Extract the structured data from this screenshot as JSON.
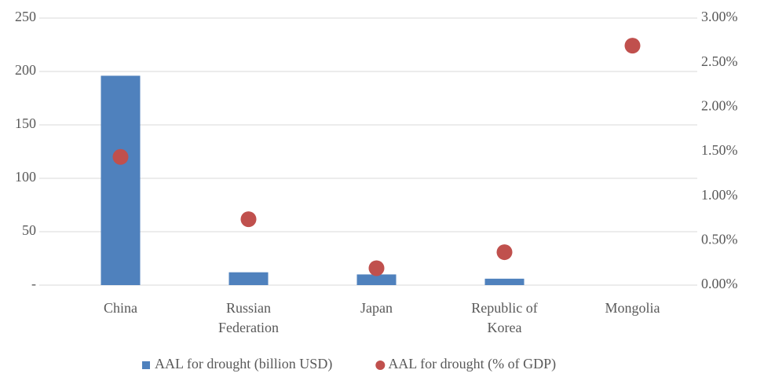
{
  "chart_data": {
    "type": "bar",
    "categories": [
      "China",
      "Russian Federation",
      "Japan",
      "Republic of Korea",
      "Mongolia"
    ],
    "series": [
      {
        "name": "AAL for drought (billion USD)",
        "type": "bar",
        "color": "#4f81bd",
        "values": [
          196,
          12,
          10,
          6,
          0
        ]
      },
      {
        "name": "AAL for drought (% of GDP)",
        "type": "scatter",
        "color": "#c0504d",
        "axis": "y2",
        "values": [
          1.44,
          0.74,
          0.19,
          0.37,
          2.69
        ]
      }
    ],
    "ylim": [
      0,
      250
    ],
    "yticks": [
      {
        "value": 0,
        "label": "-"
      },
      50,
      100,
      150,
      200,
      250
    ],
    "y2lim": [
      0,
      3
    ],
    "y2ticks": [
      {
        "value": 0,
        "label": "0.00%"
      },
      {
        "value": 0.5,
        "label": "0.50%"
      },
      {
        "value": 1,
        "label": "1.00%"
      },
      {
        "value": 1.5,
        "label": "1.50%"
      },
      {
        "value": 2,
        "label": "2.00%"
      },
      {
        "value": 2.5,
        "label": "2.50%"
      },
      {
        "value": 3,
        "label": "3.00%"
      }
    ],
    "grid": true,
    "legend": "bottom"
  }
}
